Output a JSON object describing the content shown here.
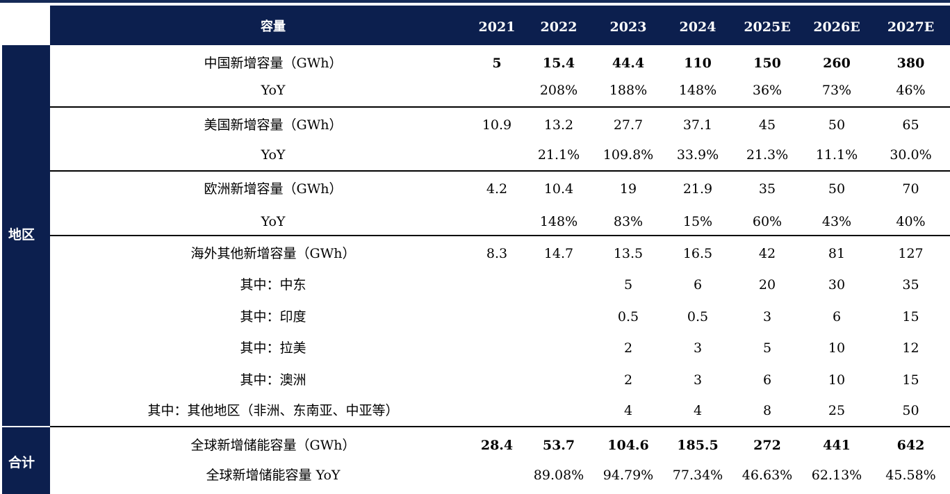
{
  "header": {
    "label": "容量",
    "years": [
      "2021",
      "2022",
      "2023",
      "2024",
      "2025E",
      "2026E",
      "2027E"
    ]
  },
  "side": {
    "region": "地区",
    "total": "合计"
  },
  "rows": [
    {
      "label": "中国新增容量（GWh）",
      "values": [
        "5",
        "15.4",
        "44.4",
        "110",
        "150",
        "260",
        "380"
      ]
    },
    {
      "label": "YoY",
      "values": [
        "",
        "208%",
        "188%",
        "148%",
        "36%",
        "73%",
        "46%"
      ]
    },
    {
      "label": "美国新增容量（GWh）",
      "values": [
        "10.9",
        "13.2",
        "27.7",
        "37.1",
        "45",
        "50",
        "65"
      ]
    },
    {
      "label": "YoY",
      "values": [
        "",
        "21.1%",
        "109.8%",
        "33.9%",
        "21.3%",
        "11.1%",
        "30.0%"
      ]
    },
    {
      "label": "欧洲新增容量（GWh）",
      "values": [
        "4.2",
        "10.4",
        "19",
        "21.9",
        "35",
        "50",
        "70"
      ]
    },
    {
      "label": "YoY",
      "values": [
        "",
        "148%",
        "83%",
        "15%",
        "60%",
        "43%",
        "40%"
      ]
    },
    {
      "label": "海外其他新增容量（GWh）",
      "values": [
        "8.3",
        "14.7",
        "13.5",
        "16.5",
        "42",
        "81",
        "127"
      ]
    },
    {
      "label": "其中：中东",
      "values": [
        "",
        "",
        "5",
        "6",
        "20",
        "30",
        "35"
      ]
    },
    {
      "label": "其中：印度",
      "values": [
        "",
        "",
        "0.5",
        "0.5",
        "3",
        "6",
        "15"
      ]
    },
    {
      "label": "其中：拉美",
      "values": [
        "",
        "",
        "2",
        "3",
        "5",
        "10",
        "12"
      ]
    },
    {
      "label": "其中：澳洲",
      "values": [
        "",
        "",
        "2",
        "3",
        "6",
        "10",
        "15"
      ]
    },
    {
      "label": "其中：其他地区（非洲、东南亚、中亚等）",
      "values": [
        "",
        "",
        "4",
        "4",
        "8",
        "25",
        "50"
      ]
    },
    {
      "label": "全球新增储能容量（GWh）",
      "values": [
        "28.4",
        "53.7",
        "104.6",
        "185.5",
        "272",
        "441",
        "642"
      ]
    },
    {
      "label": "全球新增储能容量 YoY",
      "values": [
        "",
        "89.08%",
        "94.79%",
        "77.34%",
        "46.63%",
        "62.13%",
        "45.58%"
      ]
    }
  ]
}
